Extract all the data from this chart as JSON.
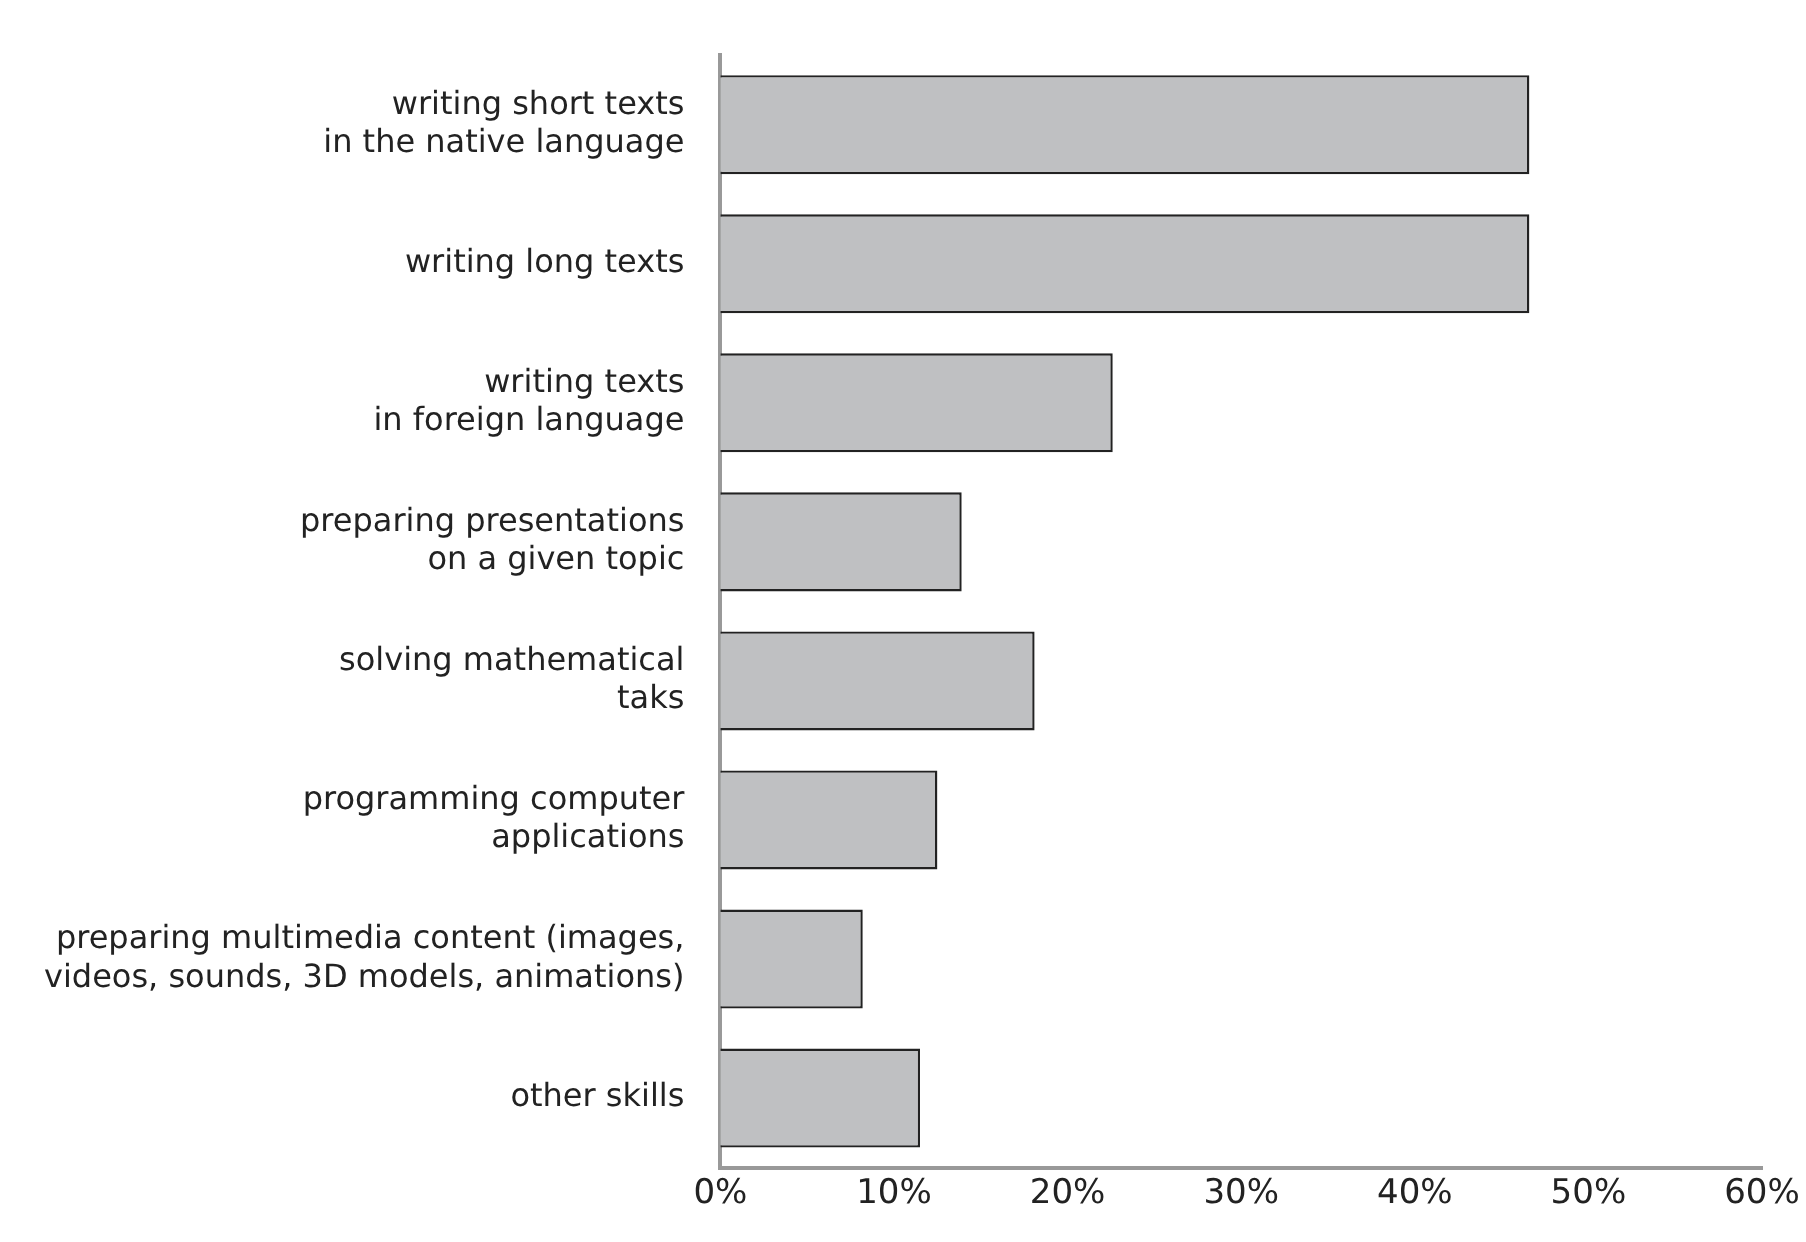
{
  "chart_data": {
    "type": "bar",
    "orientation": "horizontal",
    "categories": [
      "writing short texts\nin the native language",
      "writing long texts",
      "writing texts\nin foreign language",
      "preparing presentations\non a given topic",
      "solving mathematical\ntaks",
      "programming computer\napplications",
      "preparing multimedia content (images,\nvideos, sounds, 3D models, animations)",
      "other skills"
    ],
    "values": [
      46.6,
      46.6,
      22.6,
      13.9,
      18.1,
      12.5,
      8.2,
      11.5
    ],
    "color": "#bfc0c2",
    "xlim": [
      0,
      60
    ],
    "xticks": [
      {
        "value": 0,
        "label": "0%"
      },
      {
        "value": 10,
        "label": "10%"
      },
      {
        "value": 20,
        "label": "20%"
      },
      {
        "value": 30,
        "label": "30%"
      },
      {
        "value": 40,
        "label": "40%"
      },
      {
        "value": 50,
        "label": "50%"
      },
      {
        "value": 60,
        "label": "60%"
      }
    ],
    "grid": false,
    "legend": false
  }
}
